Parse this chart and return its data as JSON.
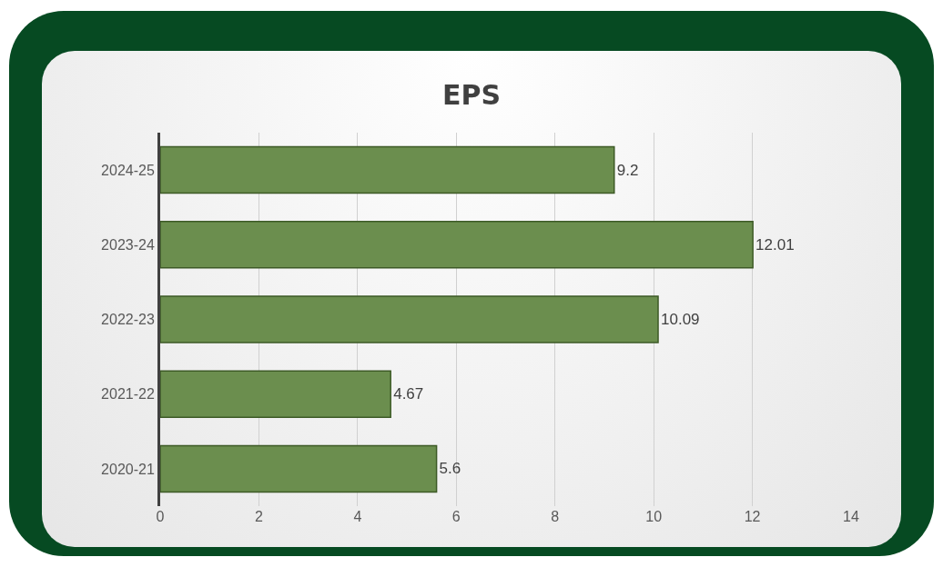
{
  "chart_data": {
    "type": "bar",
    "orientation": "horizontal",
    "title": "EPS",
    "categories": [
      "2024-25",
      "2023-24",
      "2022-23",
      "2021-22",
      "2020-21"
    ],
    "values": [
      9.2,
      12.01,
      10.09,
      4.67,
      5.6
    ],
    "color": "#6b8e4e",
    "xlim": [
      0,
      14
    ],
    "xticks": [
      0,
      2,
      4,
      6,
      8,
      10,
      12,
      14
    ],
    "grid": "x",
    "data_labels": true
  }
}
